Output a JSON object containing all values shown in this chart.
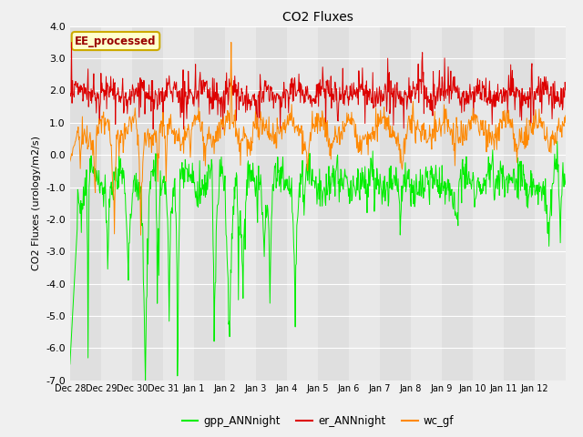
{
  "title": "CO2 Fluxes",
  "ylabel": "CO2 Fluxes (urology/m2/s)",
  "ylim": [
    -7.0,
    4.0
  ],
  "yticks": [
    -7.0,
    -6.0,
    -5.0,
    -4.0,
    -3.0,
    -2.0,
    -1.0,
    0.0,
    1.0,
    2.0,
    3.0,
    4.0
  ],
  "xtick_labels": [
    "Dec 28",
    "Dec 29",
    "Dec 30",
    "Dec 31",
    "Jan 1",
    "Jan 2",
    "Jan 3",
    "Jan 4",
    "Jan 5",
    "Jan 6",
    "Jan 7",
    "Jan 8",
    "Jan 9",
    "Jan 10",
    "Jan 11",
    "Jan 12"
  ],
  "n_points": 960,
  "background_color": "#f0f0f0",
  "plot_bg_color": "#e8e8e8",
  "grid_color": "#ffffff",
  "colors": {
    "gpp_ANNnight": "#00ee00",
    "er_ANNnight": "#dd0000",
    "wc_gf": "#ff8800"
  },
  "legend_label": "EE_processed",
  "legend_box_color": "#ffffcc",
  "legend_box_edgecolor": "#ccaa00",
  "n_days": 16,
  "pts_per_day": 60
}
